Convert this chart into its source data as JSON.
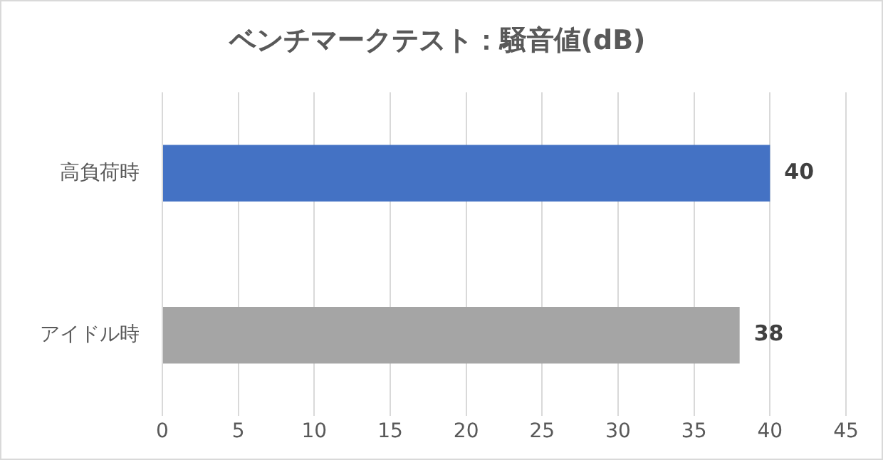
{
  "chart_data": {
    "type": "bar",
    "orientation": "horizontal",
    "title": "ベンチマークテスト：騒音値(dB)",
    "categories": [
      "高負荷時",
      "アイドル時"
    ],
    "values": [
      40,
      38
    ],
    "colors": [
      "#4472c4",
      "#a5a5a5"
    ],
    "xlim": [
      0,
      45
    ],
    "xticks": [
      0,
      5,
      10,
      15,
      20,
      25,
      30,
      35,
      40,
      45
    ],
    "grid": "x",
    "data_labels": true
  }
}
